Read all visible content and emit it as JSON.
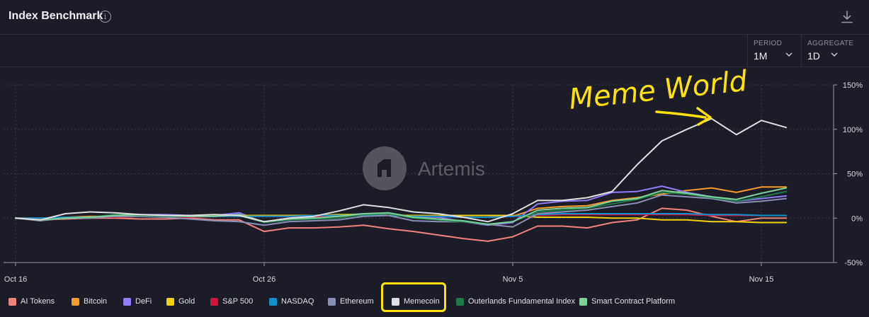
{
  "header": {
    "title": "Index Benchmark",
    "info_symbol": "i"
  },
  "controls": {
    "period": {
      "label": "PERIOD",
      "value": "1M"
    },
    "aggregate": {
      "label": "AGGREGATE",
      "value": "1D"
    }
  },
  "watermark": {
    "text": "Artemis"
  },
  "annotation": {
    "text": "Meme World",
    "color": "#ffe20c"
  },
  "chart_data": {
    "type": "line",
    "x_ticks": [
      "Oct 16",
      "Oct 26",
      "Nov 5",
      "Nov 15"
    ],
    "x_tick_days": [
      0,
      10,
      20,
      30
    ],
    "x_days": [
      0,
      1,
      2,
      3,
      4,
      5,
      6,
      7,
      8,
      9,
      10,
      11,
      12,
      13,
      14,
      15,
      16,
      17,
      18,
      19,
      20,
      21,
      22,
      23,
      24,
      25,
      26,
      27,
      28,
      29,
      30,
      31
    ],
    "y_ticks": [
      "150%",
      "100%",
      "50%",
      "0%",
      "-50%"
    ],
    "ylim": [
      -50,
      150
    ],
    "grid": true,
    "legend_position": "bottom",
    "series": [
      {
        "name": "AI Tokens",
        "color": "#f0837c",
        "values": [
          0,
          -2,
          -1,
          0,
          0,
          -1,
          -1,
          0,
          -2,
          -2,
          -15,
          -11,
          -11,
          -10,
          -8,
          -12,
          -15,
          -19,
          -23,
          -26,
          -21,
          -9,
          -9,
          -11,
          -5,
          -2,
          11,
          9,
          2,
          -4,
          0,
          0
        ]
      },
      {
        "name": "Bitcoin",
        "color": "#f79b2c",
        "values": [
          0,
          -1,
          1,
          2,
          2,
          3,
          2,
          2,
          3,
          2,
          3,
          3,
          3,
          3,
          4,
          3,
          2,
          2,
          1,
          1,
          2,
          11,
          13,
          14,
          20,
          23,
          27,
          31,
          34,
          29,
          35,
          35
        ]
      },
      {
        "name": "DeFi",
        "color": "#8f7df5",
        "values": [
          0,
          -2,
          0,
          1,
          3,
          4,
          4,
          3,
          3,
          6,
          -5,
          -2,
          1,
          3,
          5,
          5,
          2,
          1,
          -4,
          -8,
          -5,
          16,
          19,
          20,
          29,
          30,
          36,
          29,
          24,
          19,
          22,
          25
        ]
      },
      {
        "name": "Gold",
        "color": "#f1d20a",
        "values": [
          0,
          0,
          0,
          1,
          1,
          2,
          2,
          2,
          2,
          3,
          3,
          3,
          3,
          4,
          4,
          3,
          3,
          3,
          3,
          3,
          3,
          1,
          1,
          1,
          0,
          0,
          -2,
          -2,
          -4,
          -4,
          -5,
          -5
        ]
      },
      {
        "name": "S&P 500",
        "color": "#d2153c",
        "values": [
          0,
          0,
          1,
          1,
          1,
          2,
          1,
          1,
          2,
          2,
          2,
          2,
          2,
          2,
          3,
          3,
          2,
          2,
          1,
          1,
          2,
          3,
          4,
          4,
          4,
          4,
          4,
          4,
          3,
          3,
          3,
          3
        ]
      },
      {
        "name": "NASDAQ",
        "color": "#138fc9",
        "values": [
          0,
          0,
          1,
          1,
          2,
          2,
          2,
          2,
          2,
          2,
          2,
          2,
          3,
          3,
          3,
          3,
          2,
          2,
          1,
          1,
          2,
          4,
          5,
          5,
          5,
          5,
          5,
          5,
          4,
          4,
          3,
          3
        ]
      },
      {
        "name": "Ethereum",
        "color": "#8b8fb5",
        "values": [
          0,
          -3,
          0,
          0,
          2,
          2,
          1,
          -1,
          -3,
          -4,
          -8,
          -4,
          -3,
          -2,
          2,
          3,
          -3,
          -4,
          -4,
          -7,
          -10,
          5,
          7,
          9,
          13,
          17,
          26,
          24,
          22,
          17,
          19,
          22
        ]
      },
      {
        "name": "Memecoin",
        "color": "#e0e0e0",
        "values": [
          0,
          -2,
          5,
          7,
          6,
          4,
          3,
          3,
          4,
          3,
          -4,
          0,
          2,
          8,
          15,
          12,
          7,
          5,
          1,
          -4,
          5,
          20,
          20,
          23,
          30,
          60,
          87,
          100,
          112,
          94,
          110,
          102
        ]
      },
      {
        "name": "Outerlands Fundamental Index",
        "color": "#1f7a45",
        "values": [
          0,
          -2,
          0,
          1,
          4,
          3,
          2,
          2,
          3,
          3,
          -5,
          -2,
          -1,
          0,
          4,
          5,
          0,
          -2,
          -4,
          -7,
          -4,
          7,
          9,
          11,
          16,
          21,
          29,
          27,
          23,
          19,
          24,
          30
        ]
      },
      {
        "name": "Smart Contract Platform",
        "color": "#7ed19b",
        "values": [
          0,
          -2,
          0,
          1,
          3,
          4,
          3,
          2,
          2,
          4,
          -4,
          -1,
          0,
          2,
          5,
          6,
          1,
          -1,
          -3,
          -7,
          -4,
          9,
          11,
          12,
          19,
          22,
          31,
          28,
          24,
          21,
          28,
          34
        ]
      }
    ]
  }
}
